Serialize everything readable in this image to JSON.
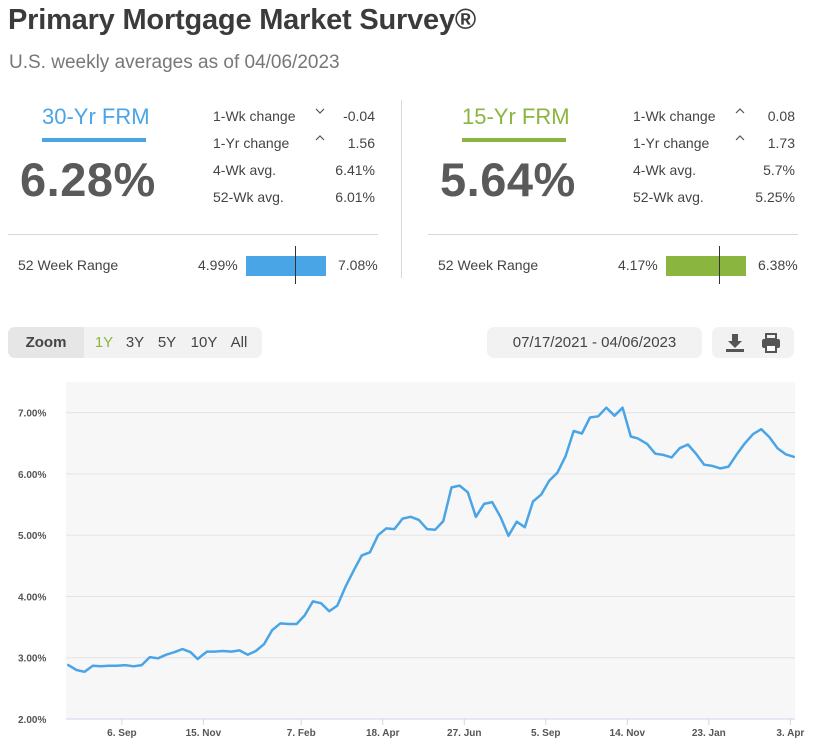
{
  "title": "Primary Mortgage Market Survey®",
  "subtitle": "U.S. weekly averages as of 04/06/2023",
  "colors": {
    "thirty": "#4aa5e6",
    "fifteen": "#8ab63f",
    "line": "#4aa5e6",
    "plot_bg": "#f7f7f7"
  },
  "frm30": {
    "label": "30-Yr FRM",
    "rate": "6.28%",
    "stats": [
      {
        "label": "1-Wk change",
        "value": "-0.04",
        "direction": "down"
      },
      {
        "label": "1-Yr change",
        "value": "1.56",
        "direction": "up"
      },
      {
        "label": "4-Wk avg.",
        "value": "6.41%",
        "direction": ""
      },
      {
        "label": "52-Wk avg.",
        "value": "6.01%",
        "direction": ""
      }
    ],
    "range_label": "52 Week Range",
    "range_low": "4.99%",
    "range_high": "7.08%",
    "range_current": 6.28,
    "range_min": 4.99,
    "range_max": 7.08
  },
  "frm15": {
    "label": "15-Yr FRM",
    "rate": "5.64%",
    "stats": [
      {
        "label": "1-Wk change",
        "value": "0.08",
        "direction": "up"
      },
      {
        "label": "1-Yr change",
        "value": "1.73",
        "direction": "up"
      },
      {
        "label": "4-Wk avg.",
        "value": "5.7%",
        "direction": ""
      },
      {
        "label": "52-Wk avg.",
        "value": "5.25%",
        "direction": ""
      }
    ],
    "range_label": "52 Week Range",
    "range_low": "4.17%",
    "range_high": "6.38%",
    "range_current": 5.64,
    "range_min": 4.17,
    "range_max": 6.38
  },
  "zoom": {
    "label": "Zoom",
    "options": [
      "1Y",
      "3Y",
      "5Y",
      "10Y",
      "All"
    ],
    "active": "1Y"
  },
  "date_range": "07/17/2021 - 04/06/2023",
  "tools": {
    "download_icon": "download-icon",
    "print_icon": "print-icon"
  },
  "chart_data": {
    "type": "line",
    "title": "",
    "xlabel": "",
    "ylabel": "",
    "ylim": [
      2.0,
      7.5
    ],
    "y_ticks": [
      "2.00%",
      "3.00%",
      "4.00%",
      "5.00%",
      "6.00%",
      "7.00%"
    ],
    "x_ticks": [
      {
        "label": "6. Sep",
        "date": "2021-09-06"
      },
      {
        "label": "15. Nov",
        "date": "2021-11-15"
      },
      {
        "label": "7. Feb",
        "date": "2022-02-07"
      },
      {
        "label": "18. Apr",
        "date": "2022-04-18"
      },
      {
        "label": "27. Jun",
        "date": "2022-06-27"
      },
      {
        "label": "5. Sep",
        "date": "2022-09-05"
      },
      {
        "label": "14. Nov",
        "date": "2022-11-14"
      },
      {
        "label": "23. Jan",
        "date": "2023-01-23"
      },
      {
        "label": "3. Apr",
        "date": "2023-04-03"
      }
    ],
    "grid": true,
    "series": [
      {
        "x": [
          "2021-07-22",
          "2021-07-29",
          "2021-08-05",
          "2021-08-12",
          "2021-08-19",
          "2021-08-26",
          "2021-09-02",
          "2021-09-09",
          "2021-09-16",
          "2021-09-23",
          "2021-09-30",
          "2021-10-07",
          "2021-10-14",
          "2021-10-21",
          "2021-10-28",
          "2021-11-04",
          "2021-11-10",
          "2021-11-18",
          "2021-11-24",
          "2021-12-02",
          "2021-12-09",
          "2021-12-16",
          "2021-12-23",
          "2021-12-30",
          "2022-01-06",
          "2022-01-13",
          "2022-01-20",
          "2022-01-27",
          "2022-02-03",
          "2022-02-10",
          "2022-02-17",
          "2022-02-24",
          "2022-03-03",
          "2022-03-10",
          "2022-03-17",
          "2022-03-24",
          "2022-03-31",
          "2022-04-07",
          "2022-04-14",
          "2022-04-21",
          "2022-04-28",
          "2022-05-05",
          "2022-05-12",
          "2022-05-19",
          "2022-05-26",
          "2022-06-02",
          "2022-06-09",
          "2022-06-16",
          "2022-06-23",
          "2022-06-30",
          "2022-07-07",
          "2022-07-14",
          "2022-07-21",
          "2022-07-28",
          "2022-08-04",
          "2022-08-11",
          "2022-08-18",
          "2022-08-25",
          "2022-09-01",
          "2022-09-08",
          "2022-09-15",
          "2022-09-22",
          "2022-09-29",
          "2022-10-06",
          "2022-10-13",
          "2022-10-20",
          "2022-10-27",
          "2022-11-03",
          "2022-11-10",
          "2022-11-17",
          "2022-11-23",
          "2022-12-01",
          "2022-12-08",
          "2022-12-15",
          "2022-12-22",
          "2022-12-29",
          "2023-01-05",
          "2023-01-12",
          "2023-01-19",
          "2023-01-26",
          "2023-02-02",
          "2023-02-09",
          "2023-02-16",
          "2023-02-23",
          "2023-03-02",
          "2023-03-09",
          "2023-03-16",
          "2023-03-23",
          "2023-03-30",
          "2023-04-06"
        ],
        "values": [
          2.88,
          2.8,
          2.77,
          2.87,
          2.86,
          2.87,
          2.87,
          2.88,
          2.86,
          2.88,
          3.01,
          2.99,
          3.05,
          3.09,
          3.14,
          3.09,
          2.98,
          3.1,
          3.1,
          3.11,
          3.1,
          3.12,
          3.05,
          3.11,
          3.22,
          3.45,
          3.56,
          3.55,
          3.55,
          3.69,
          3.92,
          3.89,
          3.76,
          3.85,
          4.16,
          4.42,
          4.67,
          4.72,
          5.0,
          5.11,
          5.1,
          5.27,
          5.3,
          5.25,
          5.1,
          5.09,
          5.23,
          5.78,
          5.81,
          5.7,
          5.3,
          5.51,
          5.54,
          5.3,
          4.99,
          5.22,
          5.13,
          5.55,
          5.66,
          5.89,
          6.02,
          6.29,
          6.7,
          6.66,
          6.92,
          6.94,
          7.08,
          6.95,
          7.08,
          6.61,
          6.58,
          6.49,
          6.33,
          6.31,
          6.27,
          6.42,
          6.48,
          6.33,
          6.15,
          6.13,
          6.09,
          6.12,
          6.32,
          6.5,
          6.65,
          6.73,
          6.6,
          6.42,
          6.32,
          6.28
        ]
      }
    ]
  }
}
